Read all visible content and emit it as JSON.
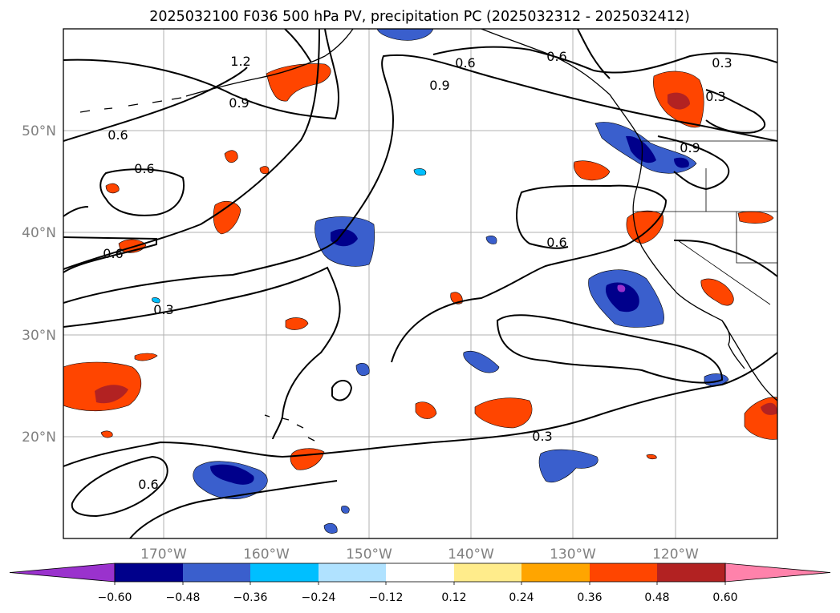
{
  "title": "2025032100 F036 500 hPa PV, precipitation PC (2025032312 - 2025032412)",
  "map": {
    "lat_ticks": [
      "50°N",
      "40°N",
      "30°N",
      "20°N"
    ],
    "lon_ticks": [
      "170°W",
      "160°W",
      "150°W",
      "140°W",
      "130°W",
      "120°W"
    ],
    "contour_labels": [
      "1.2",
      "0.6",
      "0.9",
      "0.6",
      "0.6",
      "0.9",
      "0.6",
      "0.6",
      "0.3",
      "0.3",
      "0.9",
      "0.6",
      "0.3",
      "0.3",
      "0.6"
    ]
  },
  "colorbar": {
    "ticks": [
      "−0.60",
      "−0.48",
      "−0.36",
      "−0.24",
      "−0.12",
      "0.12",
      "0.24",
      "0.36",
      "0.48",
      "0.60"
    ],
    "colors": [
      "#9a32cd",
      "#00008b",
      "#3a5fcd",
      "#00bfff",
      "#b0e2ff",
      "#ffffff",
      "#ffec8b",
      "#ffa500",
      "#ff4500",
      "#b22222",
      "#ff82ab"
    ]
  }
}
